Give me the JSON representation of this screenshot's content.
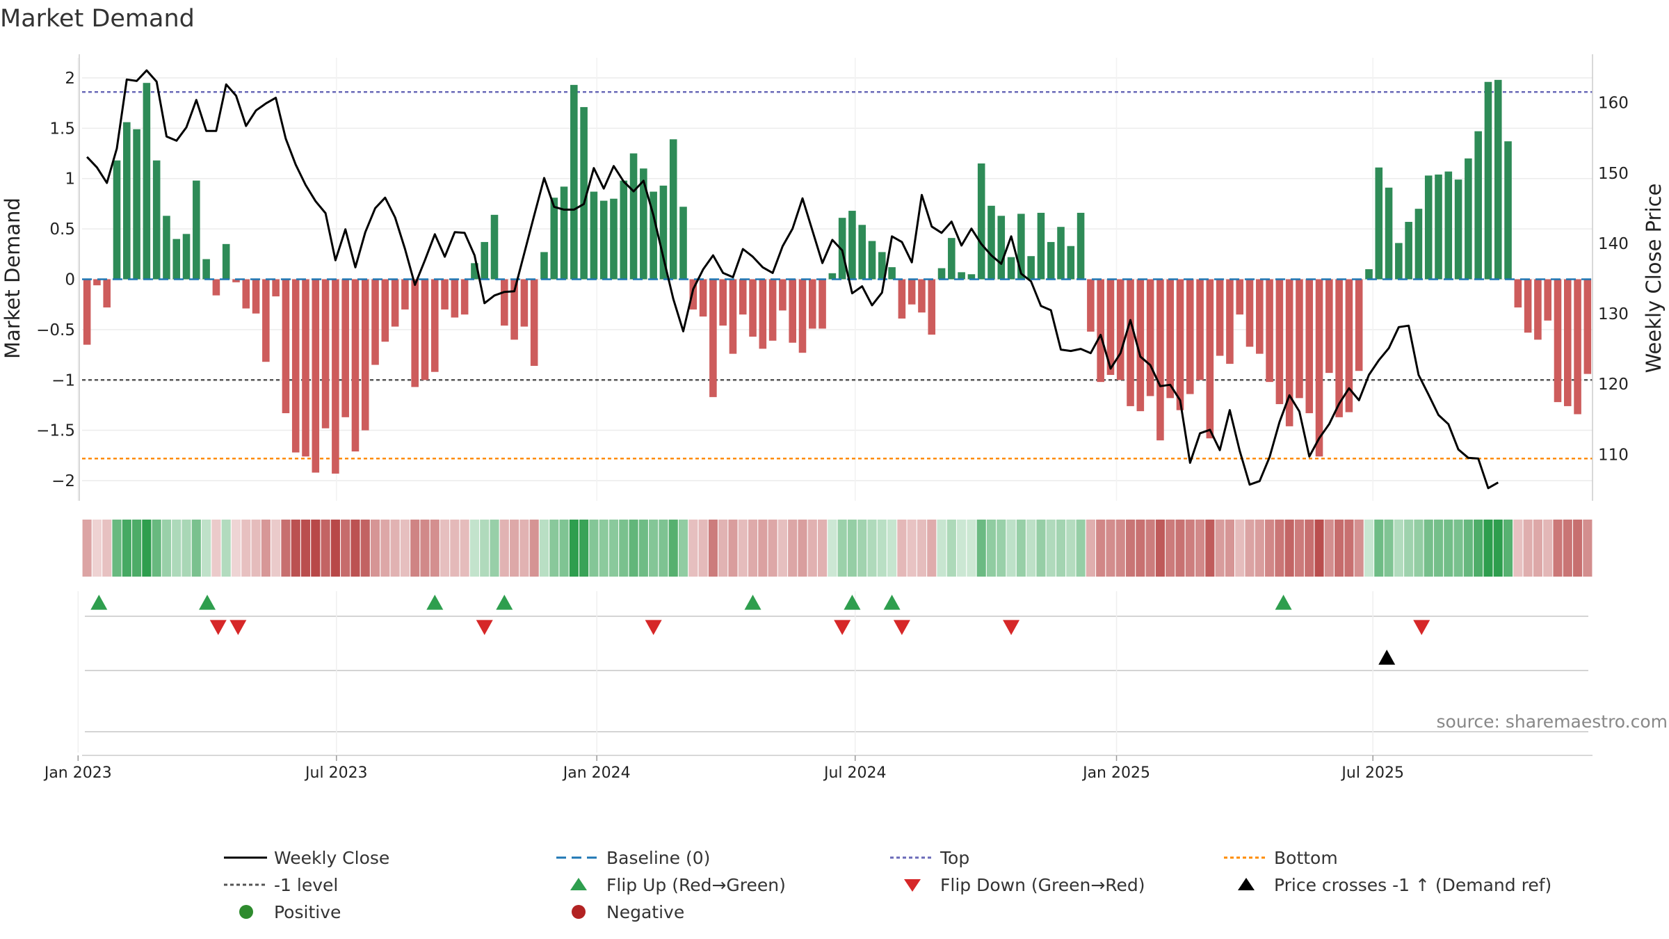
{
  "chart_data": {
    "type": "bar",
    "title": "Market Demand",
    "ylabel_left": "Market Demand",
    "ylabel_right": "Weekly Close Price",
    "ylim_left": [
      -2.2,
      2.2
    ],
    "ylim_right": [
      103.4,
      166.4
    ],
    "yticks_left": [
      "2",
      "1.5",
      "1",
      "0.5",
      "0",
      "−0.5",
      "−1",
      "−1.5",
      "−2"
    ],
    "yticks_right": [
      "160",
      "150",
      "140",
      "130",
      "120",
      "110"
    ],
    "ytick_values_left": [
      2,
      1.5,
      1,
      0.5,
      0,
      -0.5,
      -1,
      -1.5,
      -2
    ],
    "ytick_values_right": [
      160,
      150,
      140,
      130,
      120,
      110
    ],
    "x_start": "2023-01-06",
    "x_step": "1 week",
    "x_ticks": [
      "Jan 2023",
      "Jul 2023",
      "Jan 2024",
      "Jul 2024",
      "Jan 2025",
      "Jul 2025"
    ],
    "x_tick_weeks": [
      -0.9,
      25.1,
      51.3,
      77.3,
      103.6,
      129.4
    ],
    "reference_lines": {
      "top": 1.86,
      "minus_one": -1.0,
      "bottom": -1.78,
      "baseline": 0
    },
    "demand": [
      -0.65,
      -0.06,
      -0.28,
      1.18,
      1.56,
      1.49,
      1.95,
      1.18,
      0.63,
      0.4,
      0.45,
      0.98,
      0.2,
      -0.16,
      0.35,
      -0.03,
      -0.29,
      -0.34,
      -0.82,
      -0.17,
      -1.33,
      -1.72,
      -1.76,
      -1.92,
      -1.48,
      -1.93,
      -1.37,
      -1.71,
      -1.5,
      -0.85,
      -0.62,
      -0.47,
      -0.3,
      -1.07,
      -1.0,
      -0.92,
      -0.3,
      -0.38,
      -0.35,
      0.16,
      0.37,
      0.64,
      -0.46,
      -0.6,
      -0.47,
      -0.86,
      0.27,
      0.81,
      0.92,
      1.93,
      1.71,
      0.87,
      0.78,
      0.8,
      0.98,
      1.25,
      1.1,
      0.87,
      0.93,
      1.39,
      0.72,
      -0.3,
      -0.37,
      -1.17,
      -0.46,
      -0.74,
      -0.35,
      -0.57,
      -0.69,
      -0.61,
      -0.31,
      -0.63,
      -0.73,
      -0.49,
      -0.49,
      0.06,
      0.61,
      0.68,
      0.54,
      0.38,
      0.27,
      0.12,
      -0.39,
      -0.25,
      -0.33,
      -0.55,
      0.11,
      0.41,
      0.07,
      0.05,
      1.15,
      0.73,
      0.63,
      0.22,
      0.65,
      0.23,
      0.66,
      0.37,
      0.52,
      0.33,
      0.66,
      -0.52,
      -1.02,
      -0.95,
      -1.0,
      -1.26,
      -1.31,
      -1.16,
      -1.6,
      -1.18,
      -1.3,
      -1.14,
      -1.0,
      -1.58,
      -0.76,
      -0.84,
      -0.35,
      -0.67,
      -0.74,
      -1.02,
      -1.24,
      -1.46,
      -1.18,
      -1.33,
      -1.76,
      -0.93,
      -1.37,
      -1.32,
      -0.91,
      0.1,
      1.11,
      0.91,
      0.36,
      0.57,
      0.7,
      1.03,
      1.04,
      1.07,
      0.99,
      1.2,
      1.47,
      1.96,
      1.98,
      1.37,
      -0.28,
      -0.53,
      -0.6,
      -0.41,
      -1.22,
      -1.26,
      -1.34,
      -0.94
    ],
    "price": [
      152.3,
      150.8,
      148.6,
      153.5,
      163.3,
      163.1,
      164.6,
      163.0,
      155.2,
      154.6,
      156.5,
      160.4,
      156.0,
      156.0,
      162.6,
      161.0,
      156.7,
      158.9,
      159.9,
      160.7,
      154.9,
      151.2,
      148.3,
      146.0,
      144.3,
      137.6,
      142.0,
      136.6,
      141.6,
      145.0,
      146.5,
      143.7,
      139.2,
      134.1,
      137.6,
      141.3,
      138.1,
      141.6,
      141.5,
      138.3,
      131.5,
      132.6,
      133.1,
      133.2,
      138.6,
      144.0,
      149.3,
      145.2,
      144.8,
      144.8,
      145.6,
      150.7,
      147.8,
      151.0,
      148.8,
      147.4,
      148.9,
      144.0,
      138.0,
      132.1,
      127.5,
      133.5,
      136.3,
      138.3,
      135.8,
      135.2,
      139.2,
      138.1,
      136.6,
      135.8,
      139.6,
      142.1,
      146.4,
      141.8,
      137.2,
      140.5,
      139.0,
      132.9,
      133.9,
      131.2,
      133.0,
      141.0,
      140.2,
      137.3,
      146.9,
      142.4,
      141.5,
      143.1,
      139.7,
      142.1,
      139.9,
      138.3,
      137.1,
      141.0,
      135.7,
      134.6,
      131.1,
      130.5,
      124.9,
      124.7,
      125.0,
      124.4,
      127.0,
      122.2,
      124.4,
      129.1,
      123.9,
      122.7,
      119.7,
      119.9,
      117.7,
      108.8,
      113.0,
      113.5,
      110.6,
      116.3,
      110.5,
      105.7,
      106.2,
      109.6,
      114.6,
      118.4,
      116.1,
      109.7,
      112.3,
      114.3,
      117.2,
      119.4,
      117.7,
      121.3,
      123.4,
      125.1,
      128.1,
      128.3,
      121.3,
      118.5,
      115.6,
      114.3,
      110.7,
      109.5,
      109.4,
      105.2,
      106.0
    ],
    "heat_strip": {
      "visible": true
    },
    "flip_up_weeks": [
      1.2,
      12.1,
      35.0,
      42.0,
      67.0,
      77.0,
      81.0,
      120.4
    ],
    "flip_down_weeks": [
      13.2,
      15.2,
      40.0,
      57.0,
      76.0,
      82.0,
      93.0,
      134.3
    ],
    "price_cross_weeks": [
      130.8
    ],
    "legend": [
      {
        "label": "Weekly Close",
        "kind": "line-solid",
        "color": "#000000"
      },
      {
        "label": "Baseline (0)",
        "kind": "line-dash",
        "color": "#1f77b4"
      },
      {
        "label": "Top",
        "kind": "line-dot",
        "color": "#6a6ab8"
      },
      {
        "label": "Bottom",
        "kind": "line-dot",
        "color": "#ff8c00"
      },
      {
        "label": "-1 level",
        "kind": "line-dot",
        "color": "#555555"
      },
      {
        "label": "Flip Up (Red→Green)",
        "kind": "tri-up",
        "color": "#2e9e4e"
      },
      {
        "label": "Flip Down (Green→Red)",
        "kind": "tri-down",
        "color": "#d62728"
      },
      {
        "label": "Price crosses -1 ↑ (Demand ref)",
        "kind": "tri-up",
        "color": "#000000"
      },
      {
        "label": "Positive",
        "kind": "dot",
        "color": "#2e8b2e"
      },
      {
        "label": "Negative",
        "kind": "dot",
        "color": "#b22222"
      }
    ],
    "source": "source: sharemaestro.com",
    "colors": {
      "positive_bar": "#2e8b57",
      "negative_bar": "#cd5c5c",
      "price_line": "#000000",
      "heat_pos_strong": "#2e9e4e",
      "heat_neg_strong": "#b84848"
    }
  }
}
